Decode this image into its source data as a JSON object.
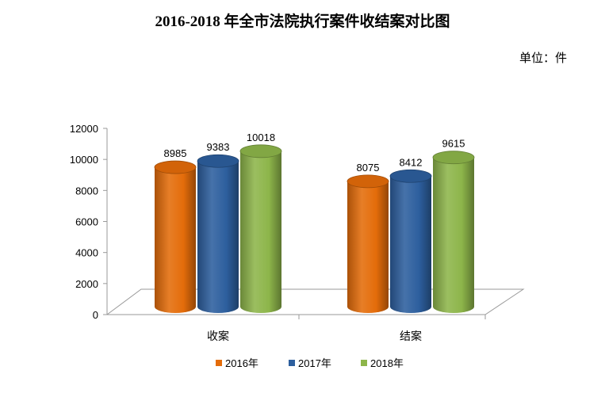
{
  "title": "2016-2018 年全市法院执行案件收结案对比图",
  "unit_label": "单位：件",
  "chart_data": {
    "type": "bar",
    "categories": [
      "收案",
      "结案"
    ],
    "series": [
      {
        "name": "2016年",
        "values": [
          8985,
          8075
        ],
        "color": "#E46C0A"
      },
      {
        "name": "2017年",
        "values": [
          9383,
          8412
        ],
        "color": "#2D5F9E"
      },
      {
        "name": "2018年",
        "values": [
          10018,
          9615
        ],
        "color": "#8DB54A"
      }
    ],
    "ylim": [
      0,
      12000
    ],
    "yticks": [
      0,
      2000,
      4000,
      6000,
      8000,
      10000,
      12000
    ],
    "grid": false,
    "legend_position": "bottom",
    "style": "3d-cylinder"
  }
}
